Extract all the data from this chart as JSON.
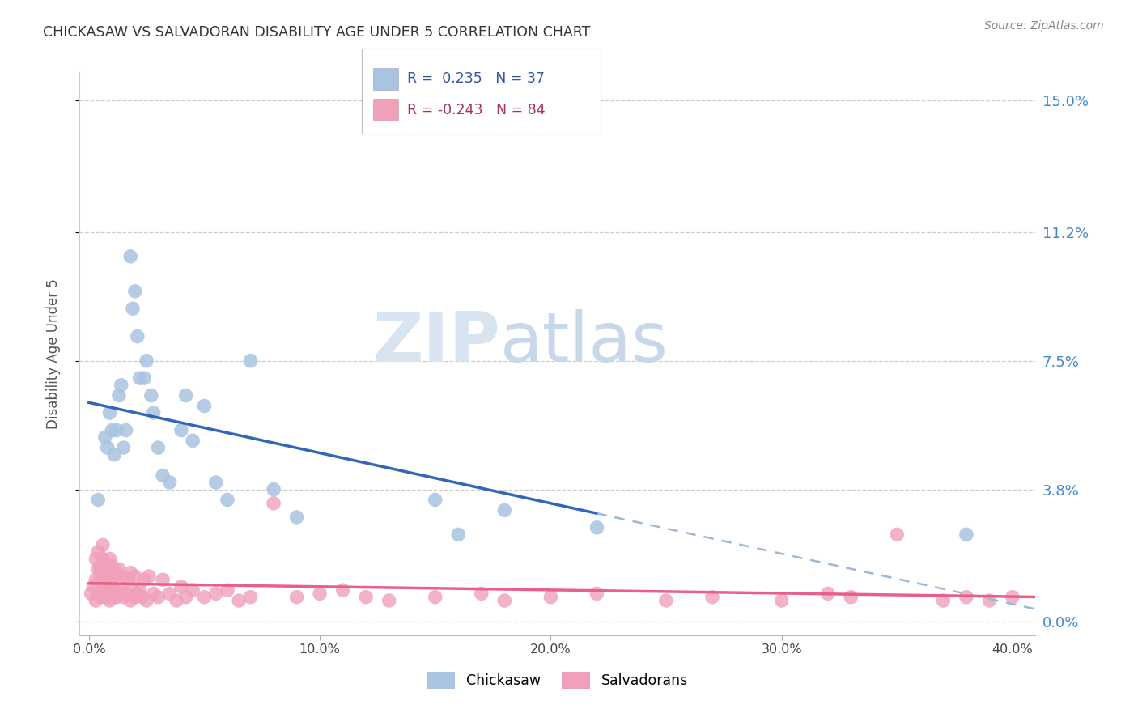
{
  "title": "CHICKASAW VS SALVADORAN DISABILITY AGE UNDER 5 CORRELATION CHART",
  "source": "Source: ZipAtlas.com",
  "ylabel": "Disability Age Under 5",
  "chickasaw_R": 0.235,
  "chickasaw_N": 37,
  "salvadoran_R": -0.243,
  "salvadoran_N": 84,
  "chickasaw_color": "#A8C4E0",
  "salvadoran_color": "#F0A0B8",
  "chickasaw_line_color": "#3366BB",
  "salvadoran_line_color": "#E8608A",
  "dashed_line_color": "#9BB8D8",
  "background_color": "#FFFFFF",
  "grid_color": "#CCCCCC",
  "right_tick_color": "#4488CC",
  "title_color": "#333333",
  "source_color": "#888888",
  "watermark_color": "#E8EEF4",
  "xlim_min": 0.0,
  "xlim_max": 0.41,
  "ylim_min": 0.0,
  "ylim_max": 0.158,
  "xtick_vals": [
    0.0,
    0.1,
    0.2,
    0.3,
    0.4
  ],
  "xtick_labels": [
    "0.0%",
    "10.0%",
    "20.0%",
    "30.0%",
    "40.0%"
  ],
  "ytick_vals": [
    0.0,
    0.038,
    0.075,
    0.112,
    0.15
  ],
  "ytick_labels": [
    "0.0%",
    "3.8%",
    "7.5%",
    "11.2%",
    "15.0%"
  ],
  "chickasaw_x": [
    0.004,
    0.007,
    0.008,
    0.009,
    0.01,
    0.011,
    0.012,
    0.013,
    0.014,
    0.015,
    0.016,
    0.018,
    0.019,
    0.02,
    0.021,
    0.022,
    0.024,
    0.025,
    0.027,
    0.028,
    0.03,
    0.032,
    0.035,
    0.04,
    0.042,
    0.045,
    0.05,
    0.055,
    0.06,
    0.07,
    0.08,
    0.09,
    0.15,
    0.16,
    0.18,
    0.22,
    0.38
  ],
  "chickasaw_y": [
    0.035,
    0.053,
    0.05,
    0.06,
    0.055,
    0.048,
    0.055,
    0.065,
    0.068,
    0.05,
    0.055,
    0.105,
    0.09,
    0.095,
    0.082,
    0.07,
    0.07,
    0.075,
    0.065,
    0.06,
    0.05,
    0.042,
    0.04,
    0.055,
    0.065,
    0.052,
    0.062,
    0.04,
    0.035,
    0.075,
    0.038,
    0.03,
    0.035,
    0.025,
    0.032,
    0.027,
    0.025
  ],
  "salvadoran_x": [
    0.001,
    0.002,
    0.003,
    0.003,
    0.004,
    0.004,
    0.005,
    0.005,
    0.005,
    0.006,
    0.006,
    0.006,
    0.007,
    0.007,
    0.007,
    0.008,
    0.008,
    0.009,
    0.009,
    0.009,
    0.01,
    0.01,
    0.01,
    0.011,
    0.011,
    0.012,
    0.012,
    0.013,
    0.013,
    0.014,
    0.015,
    0.015,
    0.016,
    0.017,
    0.018,
    0.018,
    0.019,
    0.02,
    0.02,
    0.021,
    0.022,
    0.023,
    0.024,
    0.025,
    0.026,
    0.028,
    0.03,
    0.032,
    0.035,
    0.038,
    0.04,
    0.042,
    0.045,
    0.05,
    0.055,
    0.06,
    0.065,
    0.07,
    0.08,
    0.09,
    0.1,
    0.11,
    0.12,
    0.13,
    0.15,
    0.17,
    0.18,
    0.2,
    0.22,
    0.25,
    0.27,
    0.3,
    0.32,
    0.33,
    0.35,
    0.37,
    0.38,
    0.39,
    0.4,
    0.003,
    0.004,
    0.005,
    0.006,
    0.008
  ],
  "salvadoran_y": [
    0.008,
    0.01,
    0.006,
    0.012,
    0.008,
    0.015,
    0.007,
    0.012,
    0.016,
    0.009,
    0.013,
    0.018,
    0.007,
    0.011,
    0.016,
    0.008,
    0.013,
    0.006,
    0.01,
    0.018,
    0.007,
    0.012,
    0.016,
    0.009,
    0.013,
    0.007,
    0.014,
    0.008,
    0.015,
    0.009,
    0.007,
    0.013,
    0.008,
    0.012,
    0.006,
    0.014,
    0.009,
    0.007,
    0.013,
    0.008,
    0.009,
    0.007,
    0.012,
    0.006,
    0.013,
    0.008,
    0.007,
    0.012,
    0.008,
    0.006,
    0.01,
    0.007,
    0.009,
    0.007,
    0.008,
    0.009,
    0.006,
    0.007,
    0.034,
    0.007,
    0.008,
    0.009,
    0.007,
    0.006,
    0.007,
    0.008,
    0.006,
    0.007,
    0.008,
    0.006,
    0.007,
    0.006,
    0.008,
    0.007,
    0.025,
    0.006,
    0.007,
    0.006,
    0.007,
    0.018,
    0.02,
    0.015,
    0.022,
    0.016
  ]
}
